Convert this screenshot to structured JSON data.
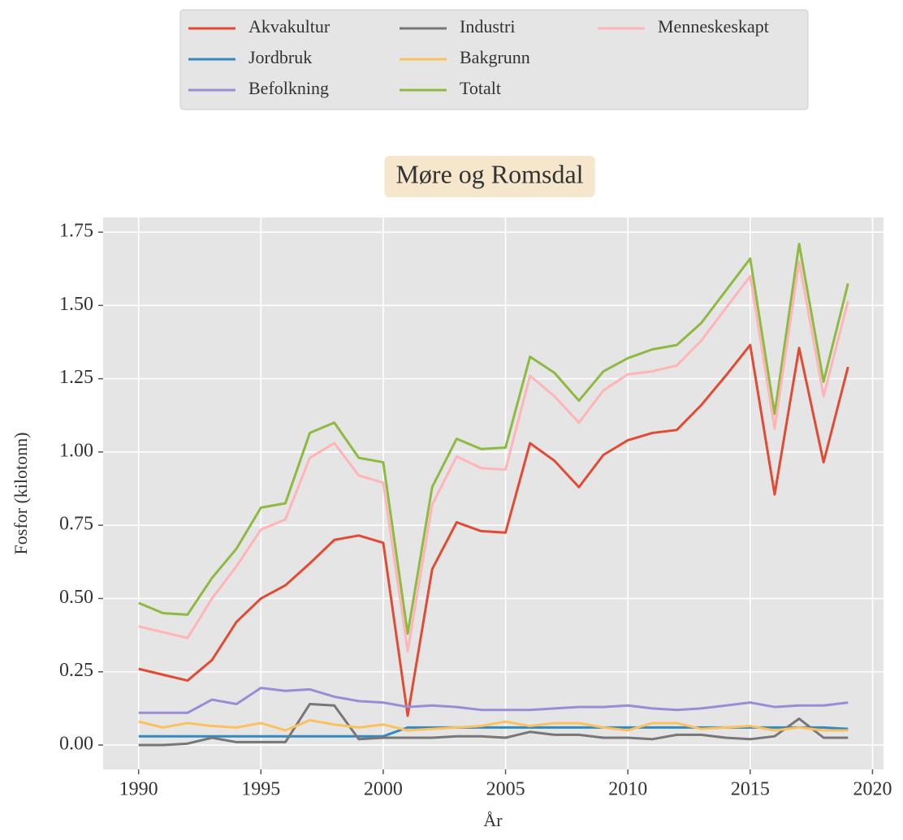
{
  "chart_data": {
    "type": "line",
    "title": "Møre og Romsdal",
    "xlabel": "År",
    "ylabel": "Fosfor (kilotonn)",
    "x": [
      1990,
      1991,
      1992,
      1993,
      1994,
      1995,
      1996,
      1997,
      1998,
      1999,
      2000,
      2001,
      2002,
      2003,
      2004,
      2005,
      2006,
      2007,
      2008,
      2009,
      2010,
      2011,
      2012,
      2013,
      2014,
      2015,
      2016,
      2017,
      2018,
      2019
    ],
    "series": [
      {
        "name": "Akvakultur",
        "color": "#E24A33",
        "values": [
          0.26,
          0.24,
          0.22,
          0.29,
          0.42,
          0.5,
          0.545,
          0.62,
          0.7,
          0.715,
          0.69,
          0.1,
          0.6,
          0.76,
          0.73,
          0.725,
          1.03,
          0.97,
          0.88,
          0.99,
          1.04,
          1.065,
          1.075,
          1.16,
          1.26,
          1.365,
          0.855,
          1.355,
          0.965,
          1.29
        ]
      },
      {
        "name": "Jordbruk",
        "color": "#348ABD",
        "values": [
          0.03,
          0.03,
          0.03,
          0.03,
          0.03,
          0.03,
          0.03,
          0.03,
          0.03,
          0.03,
          0.03,
          0.06,
          0.06,
          0.06,
          0.06,
          0.06,
          0.06,
          0.06,
          0.06,
          0.06,
          0.06,
          0.06,
          0.06,
          0.06,
          0.06,
          0.06,
          0.06,
          0.06,
          0.06,
          0.055
        ]
      },
      {
        "name": "Befolkning",
        "color": "#988ED5",
        "values": [
          0.11,
          0.11,
          0.11,
          0.155,
          0.14,
          0.195,
          0.185,
          0.19,
          0.165,
          0.15,
          0.145,
          0.13,
          0.135,
          0.13,
          0.12,
          0.12,
          0.12,
          0.125,
          0.13,
          0.13,
          0.135,
          0.125,
          0.12,
          0.125,
          0.135,
          0.145,
          0.13,
          0.135,
          0.135,
          0.145
        ]
      },
      {
        "name": "Industri",
        "color": "#777777",
        "values": [
          0,
          0,
          0.005,
          0.025,
          0.01,
          0.01,
          0.01,
          0.14,
          0.135,
          0.02,
          0.025,
          0.025,
          0.025,
          0.03,
          0.03,
          0.025,
          0.045,
          0.035,
          0.035,
          0.025,
          0.025,
          0.02,
          0.035,
          0.035,
          0.025,
          0.02,
          0.03,
          0.09,
          0.025,
          0.025
        ]
      },
      {
        "name": "Bakgrunn",
        "color": "#FBC15E",
        "values": [
          0.08,
          0.06,
          0.075,
          0.065,
          0.06,
          0.075,
          0.05,
          0.085,
          0.07,
          0.06,
          0.07,
          0.05,
          0.055,
          0.06,
          0.065,
          0.08,
          0.065,
          0.075,
          0.075,
          0.06,
          0.05,
          0.075,
          0.075,
          0.055,
          0.06,
          0.065,
          0.05,
          0.06,
          0.05,
          0.05
        ]
      },
      {
        "name": "Totalt",
        "color": "#8EBA42",
        "values": [
          0.485,
          0.45,
          0.445,
          0.57,
          0.67,
          0.81,
          0.825,
          1.065,
          1.1,
          0.98,
          0.965,
          0.38,
          0.88,
          1.045,
          1.01,
          1.015,
          1.325,
          1.27,
          1.175,
          1.275,
          1.32,
          1.35,
          1.365,
          1.44,
          1.55,
          1.66,
          1.13,
          1.71,
          1.24,
          1.575
        ]
      },
      {
        "name": "Menneskeskapt",
        "color": "#FFB5B8",
        "values": [
          0.405,
          0.385,
          0.365,
          0.5,
          0.61,
          0.735,
          0.77,
          0.98,
          1.03,
          0.92,
          0.895,
          0.32,
          0.82,
          0.985,
          0.945,
          0.94,
          1.26,
          1.19,
          1.1,
          1.21,
          1.265,
          1.275,
          1.295,
          1.38,
          1.49,
          1.6,
          1.08,
          1.65,
          1.19,
          1.515
        ]
      }
    ],
    "xlim": [
      1988.55,
      2020.45
    ],
    "xticks": [
      1990,
      1995,
      2000,
      2005,
      2010,
      2015,
      2020
    ],
    "ylim": [
      -0.083,
      1.8
    ],
    "yticks": [
      {
        "value": 0,
        "label": "0.00"
      },
      {
        "value": 0.25,
        "label": "0.25"
      },
      {
        "value": 0.5,
        "label": "0.50"
      },
      {
        "value": 0.75,
        "label": "0.75"
      },
      {
        "value": 1,
        "label": "1.00"
      },
      {
        "value": 1.25,
        "label": "1.25"
      },
      {
        "value": 1.5,
        "label": "1.50"
      },
      {
        "value": 1.75,
        "label": "1.75"
      }
    ],
    "grid": true,
    "legend": "top"
  }
}
